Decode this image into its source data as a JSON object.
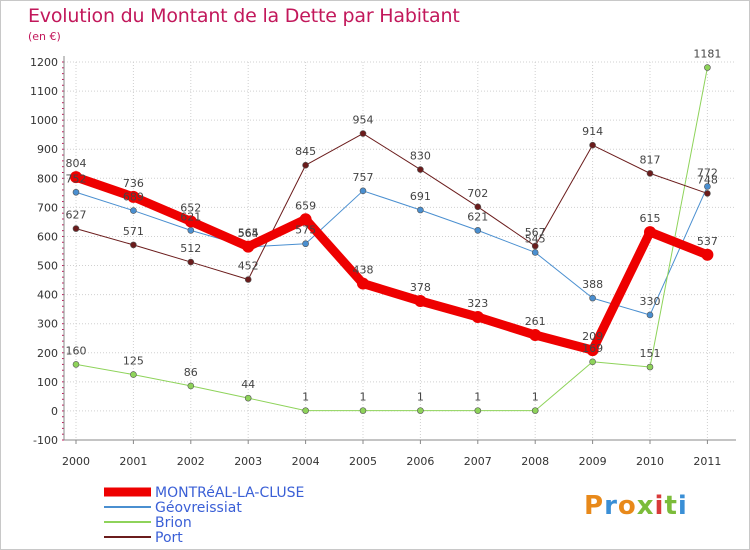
{
  "title": "Evolution du Montant de la Dette par Habitant",
  "subtitle": "(en €)",
  "logo": {
    "text": "Proxiti",
    "colors": [
      "#e8891a",
      "#3a8fd6",
      "#e8891a",
      "#7cbc3a",
      "#d83a3a",
      "#7cbc3a",
      "#3a8fd6"
    ]
  },
  "chart_data": {
    "type": "line",
    "x": [
      "2000",
      "2001",
      "2002",
      "2003",
      "2004",
      "2005",
      "2006",
      "2007",
      "2008",
      "2009",
      "2010",
      "2011"
    ],
    "ylim": [
      -100,
      1200
    ],
    "yticks": [
      "-100",
      "0",
      "100",
      "200",
      "300",
      "400",
      "500",
      "600",
      "700",
      "800",
      "900",
      "1000",
      "1100",
      "1200"
    ],
    "grid": true,
    "legend": "bottom-left",
    "series": [
      {
        "name": "MONTRéAL-LA-CLUSE",
        "color": "#ee0000",
        "width": 9,
        "values": [
          804,
          736,
          652,
          565,
          659,
          438,
          378,
          323,
          261,
          209,
          615,
          537
        ],
        "labels": [
          "804",
          "736",
          "652",
          "565",
          "659",
          "438",
          "378",
          "323",
          "261",
          "209",
          "615",
          "537"
        ]
      },
      {
        "name": "Géovreissiat",
        "color": "#4a8fd0",
        "width": 1,
        "values": [
          752,
          689,
          621,
          564,
          575,
          757,
          691,
          621,
          545,
          388,
          330,
          772
        ],
        "labels": [
          "752",
          "689",
          "621",
          "564",
          "575",
          "757",
          "691",
          "621",
          "545",
          "388",
          "330",
          "772"
        ]
      },
      {
        "name": "Brion",
        "color": "#8ed35a",
        "width": 1,
        "values": [
          160,
          125,
          86,
          44,
          1,
          1,
          1,
          1,
          1,
          169,
          151,
          1181
        ],
        "labels": [
          "160",
          "125",
          "86",
          "44",
          "1",
          "1",
          "1",
          "1",
          "1",
          "169",
          "151",
          "1181"
        ]
      },
      {
        "name": "Port",
        "color": "#6b1c1c",
        "width": 1,
        "values": [
          627,
          571,
          512,
          452,
          845,
          954,
          830,
          702,
          567,
          914,
          817,
          748
        ],
        "labels": [
          "627",
          "571",
          "512",
          "452",
          "845",
          "954",
          "830",
          "702",
          "567",
          "914",
          "817",
          "748"
        ]
      }
    ]
  }
}
